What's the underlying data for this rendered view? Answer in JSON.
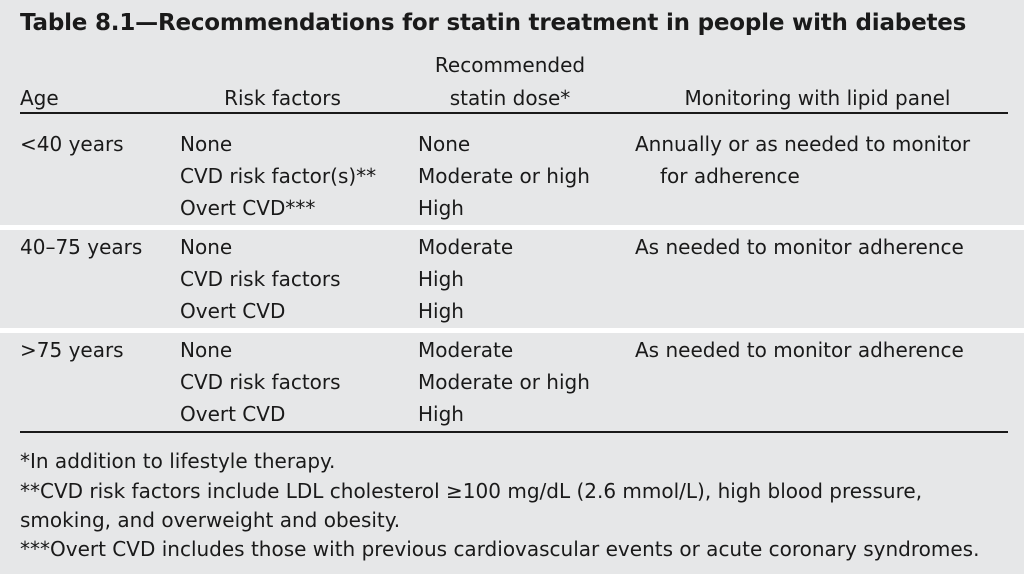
{
  "title": "Table 8.1—Recommendations for statin treatment in people with diabetes",
  "headers": {
    "age": "Age",
    "risk": "Risk factors",
    "dose_line1": "Recommended",
    "dose_line2": "statin dose*",
    "monitor": "Monitoring with lipid panel"
  },
  "rows": [
    {
      "age": "<40 years",
      "risk": [
        "None",
        "CVD risk factor(s)**",
        "Overt CVD***"
      ],
      "dose": [
        "None",
        "Moderate or high",
        "High"
      ],
      "monitor": [
        "Annually or as needed to monitor",
        "for adherence"
      ]
    },
    {
      "age": "40–75 years",
      "risk": [
        "None",
        "CVD risk factors",
        "Overt CVD"
      ],
      "dose": [
        "Moderate",
        "High",
        "High"
      ],
      "monitor": [
        "As needed to monitor adherence"
      ]
    },
    {
      "age": ">75 years",
      "risk": [
        "None",
        "CVD risk factors",
        "Overt CVD"
      ],
      "dose": [
        "Moderate",
        "Moderate or high",
        "High"
      ],
      "monitor": [
        "As needed to monitor adherence"
      ]
    }
  ],
  "footnotes": [
    "*In addition to lifestyle therapy.",
    "**CVD risk factors include LDL cholesterol ≥100 mg/dL (2.6 mmol/L), high blood pressure,",
    "smoking, and overweight and obesity.",
    "***Overt CVD includes those with previous cardiovascular events or acute coronary syndromes."
  ]
}
